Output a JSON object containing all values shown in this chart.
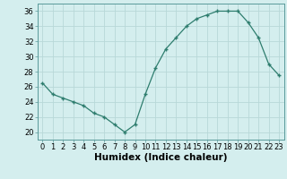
{
  "x": [
    0,
    1,
    2,
    3,
    4,
    5,
    6,
    7,
    8,
    9,
    10,
    11,
    12,
    13,
    14,
    15,
    16,
    17,
    18,
    19,
    20,
    21,
    22,
    23
  ],
  "y": [
    26.5,
    25.0,
    24.5,
    24.0,
    23.5,
    22.5,
    22.0,
    21.0,
    20.0,
    21.0,
    25.0,
    28.5,
    31.0,
    32.5,
    34.0,
    35.0,
    35.5,
    36.0,
    36.0,
    36.0,
    34.5,
    32.5,
    29.0,
    27.5
  ],
  "xlabel": "Humidex (Indice chaleur)",
  "ylim": [
    19,
    37
  ],
  "yticks": [
    20,
    22,
    24,
    26,
    28,
    30,
    32,
    34,
    36
  ],
  "xticks": [
    0,
    1,
    2,
    3,
    4,
    5,
    6,
    7,
    8,
    9,
    10,
    11,
    12,
    13,
    14,
    15,
    16,
    17,
    18,
    19,
    20,
    21,
    22,
    23
  ],
  "line_color": "#2e7d6e",
  "marker_color": "#2e7d6e",
  "bg_color": "#d4eeee",
  "grid_color": "#b8d8d8",
  "tick_label_fontsize": 6.0,
  "xlabel_fontsize": 7.5
}
